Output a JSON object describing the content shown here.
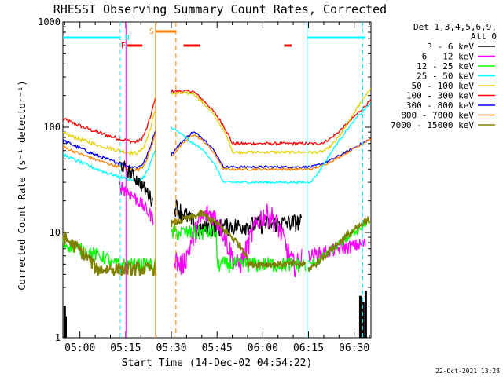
{
  "chart_data": {
    "type": "line",
    "title": "RHESSI Observing Summary Count Rates, Corrected",
    "xlabel": "Start Time (14-Dec-02 04:54:22)",
    "ylabel": "Corrected Count Rate (s⁻¹ detector⁻¹)",
    "yscale": "log",
    "ylim": [
      1,
      1000
    ],
    "xlim_minutes_after_0500": [
      -5.6,
      33.5
    ],
    "x_ticks": [
      {
        "m": 0,
        "label": "05:00"
      },
      {
        "m": 15,
        "label": "05:15"
      },
      {
        "m": 30,
        "label": "05:30"
      },
      {
        "m": 45,
        "label": "05:45"
      },
      {
        "m": 60,
        "label": "06:00"
      },
      {
        "m": 75,
        "label": "06:15"
      },
      {
        "m": 90,
        "label": "06:30"
      }
    ],
    "y_ticks": [
      {
        "v": 1,
        "label": "1"
      },
      {
        "v": 10,
        "label": "10"
      },
      {
        "v": 100,
        "label": "100"
      },
      {
        "v": 1000,
        "label": "1000"
      }
    ],
    "legend": {
      "placement": "right",
      "header1": "Det 1,3,4,5,6,9,",
      "header2": "Att 0"
    },
    "series": [
      {
        "name": "3 - 6 keV",
        "color": "#000000"
      },
      {
        "name": "6 - 12 keV",
        "color": "#ff00ff"
      },
      {
        "name": "12 - 25 keV",
        "color": "#00ff00"
      },
      {
        "name": "25 - 50 keV",
        "color": "#00ffff"
      },
      {
        "name": "50 - 100 keV",
        "color": "#e6d200"
      },
      {
        "name": "100 - 300 keV",
        "color": "#ff0000"
      },
      {
        "name": "300 - 800 keV",
        "color": "#0000ff"
      },
      {
        "name": "800 - 7000 keV",
        "color": "#ff8000"
      },
      {
        "name": "7000 - 15000 keV",
        "color": "#808000"
      }
    ],
    "flags": [
      {
        "label": "N",
        "color": "#00ffff"
      },
      {
        "label": "F",
        "color": "#ff0000"
      },
      {
        "label": "S",
        "color": "#ff8000"
      }
    ],
    "timestamp": "22-Oct-2021 13:28"
  }
}
